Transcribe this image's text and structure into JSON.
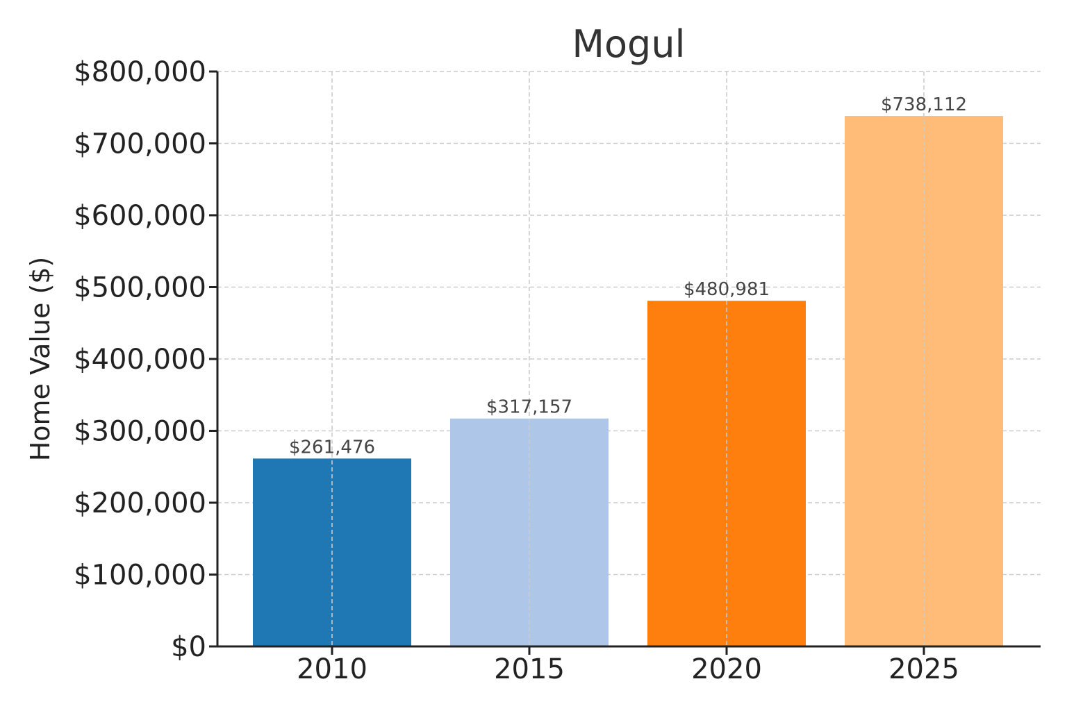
{
  "chart_data": {
    "type": "bar",
    "title": "Mogul",
    "xlabel": "",
    "ylabel": "Home Value ($)",
    "categories": [
      "2010",
      "2015",
      "2020",
      "2025"
    ],
    "values": [
      261476,
      317157,
      480981,
      738112
    ],
    "data_labels": [
      "$261,476",
      "$317,157",
      "$480,981",
      "$738,112"
    ],
    "bar_colors": [
      "#1f77b4",
      "#aec7e8",
      "#ff7f0e",
      "#ffbb78"
    ],
    "ylim": [
      0,
      800000
    ],
    "yticks": [
      0,
      100000,
      200000,
      300000,
      400000,
      500000,
      600000,
      700000,
      800000
    ],
    "ytick_labels": [
      "$0",
      "$100,000",
      "$200,000",
      "$300,000",
      "$400,000",
      "$500,000",
      "$600,000",
      "$700,000",
      "$800,000"
    ],
    "grid": true
  }
}
